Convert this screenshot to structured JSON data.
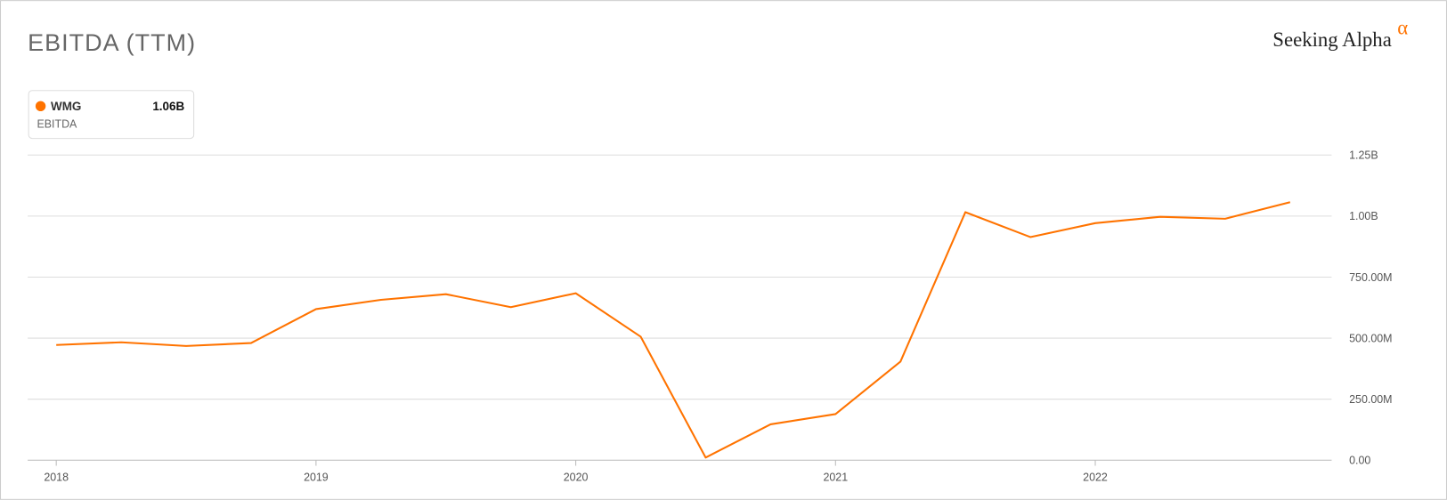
{
  "chart_data": {
    "type": "line",
    "title": "EBITDA (TTM)",
    "logo": "Seeking Alpha",
    "logo_mark": "α",
    "x": [
      2018,
      2018.25,
      2018.5,
      2018.75,
      2019,
      2019.25,
      2019.5,
      2019.75,
      2020,
      2020.25,
      2020.5,
      2020.75,
      2021,
      2021.25,
      2021.5,
      2021.75,
      2022,
      2022.25,
      2022.5,
      2022.75
    ],
    "series": [
      {
        "name": "WMG",
        "subtitle": "EBITDA",
        "color": "#ff7300",
        "values": [
          472000000,
          483000000,
          468000000,
          480000000,
          619000000,
          657000000,
          680000000,
          627000000,
          684000000,
          506000000,
          11000000,
          147000000,
          189000000,
          404000000,
          1016000000,
          914000000,
          971000000,
          997000000,
          989000000,
          1057000000
        ],
        "value_labels": [
          null,
          null,
          null,
          null,
          null,
          null,
          null,
          null,
          null,
          null,
          null,
          null,
          null,
          null,
          null,
          null,
          null,
          null,
          null,
          "1.06B"
        ]
      }
    ],
    "xlim": [
      2017.89,
      2022.91
    ],
    "xticks": [
      2018,
      2019,
      2020,
      2021,
      2022
    ],
    "ylim": [
      0,
      1250000000
    ],
    "yticks": [
      {
        "value": 0,
        "label": "0.00"
      },
      {
        "value": 250000000,
        "label": "250.00M"
      },
      {
        "value": 500000000,
        "label": "500.00M"
      },
      {
        "value": 750000000,
        "label": "750.00M"
      },
      {
        "value": 1000000000,
        "label": "1.00B"
      },
      {
        "value": 1250000000,
        "label": "1.25B"
      }
    ],
    "grid": true
  }
}
